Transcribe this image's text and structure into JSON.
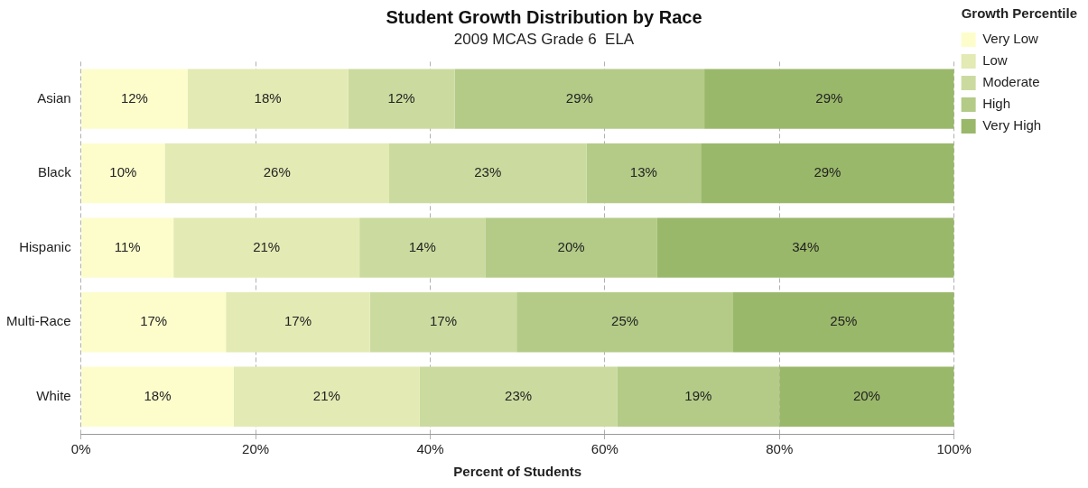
{
  "chart_data": {
    "type": "bar",
    "orientation": "horizontal",
    "stacked": true,
    "title": "Student Growth Distribution by Race",
    "subtitle": "2009 MCAS Grade 6  ELA",
    "xlabel": "Percent of Students",
    "legend_title": "Growth Percentile",
    "legend": "top right",
    "grid": "x",
    "categories": [
      "Asian",
      "Black",
      "Hispanic",
      "Multi-Race",
      "White"
    ],
    "xlim": [
      0,
      100
    ],
    "xticks": [
      {
        "value": 0,
        "label": "0%"
      },
      {
        "value": 20,
        "label": "20%"
      },
      {
        "value": 40,
        "label": "40%"
      },
      {
        "value": 60,
        "label": "60%"
      },
      {
        "value": 80,
        "label": "80%"
      },
      {
        "value": 100,
        "label": "100%"
      }
    ],
    "series": [
      {
        "name": "Very Low",
        "color": "#fdfdcc",
        "values": [
          12.2,
          9.6,
          10.6,
          16.6,
          17.5
        ],
        "value_labels": [
          "12%",
          "10%",
          "11%",
          "17%",
          "18%"
        ]
      },
      {
        "name": "Low",
        "color": "#e3eab3",
        "values": [
          18.4,
          25.7,
          21.3,
          16.5,
          21.3
        ],
        "value_labels": [
          "18%",
          "26%",
          "21%",
          "17%",
          "21%"
        ]
      },
      {
        "name": "Moderate",
        "color": "#cbdb9f",
        "values": [
          12.2,
          22.6,
          14.4,
          16.8,
          22.6
        ],
        "value_labels": [
          "12%",
          "23%",
          "14%",
          "17%",
          "23%"
        ]
      },
      {
        "name": "High",
        "color": "#b3cb87",
        "values": [
          28.6,
          13.1,
          19.7,
          24.8,
          18.6
        ],
        "value_labels": [
          "29%",
          "13%",
          "20%",
          "25%",
          "19%"
        ]
      },
      {
        "name": "Very High",
        "color": "#9ab86a",
        "values": [
          28.6,
          29.0,
          34.0,
          25.3,
          20.0
        ],
        "value_labels": [
          "29%",
          "29%",
          "34%",
          "25%",
          "20%"
        ]
      }
    ]
  }
}
